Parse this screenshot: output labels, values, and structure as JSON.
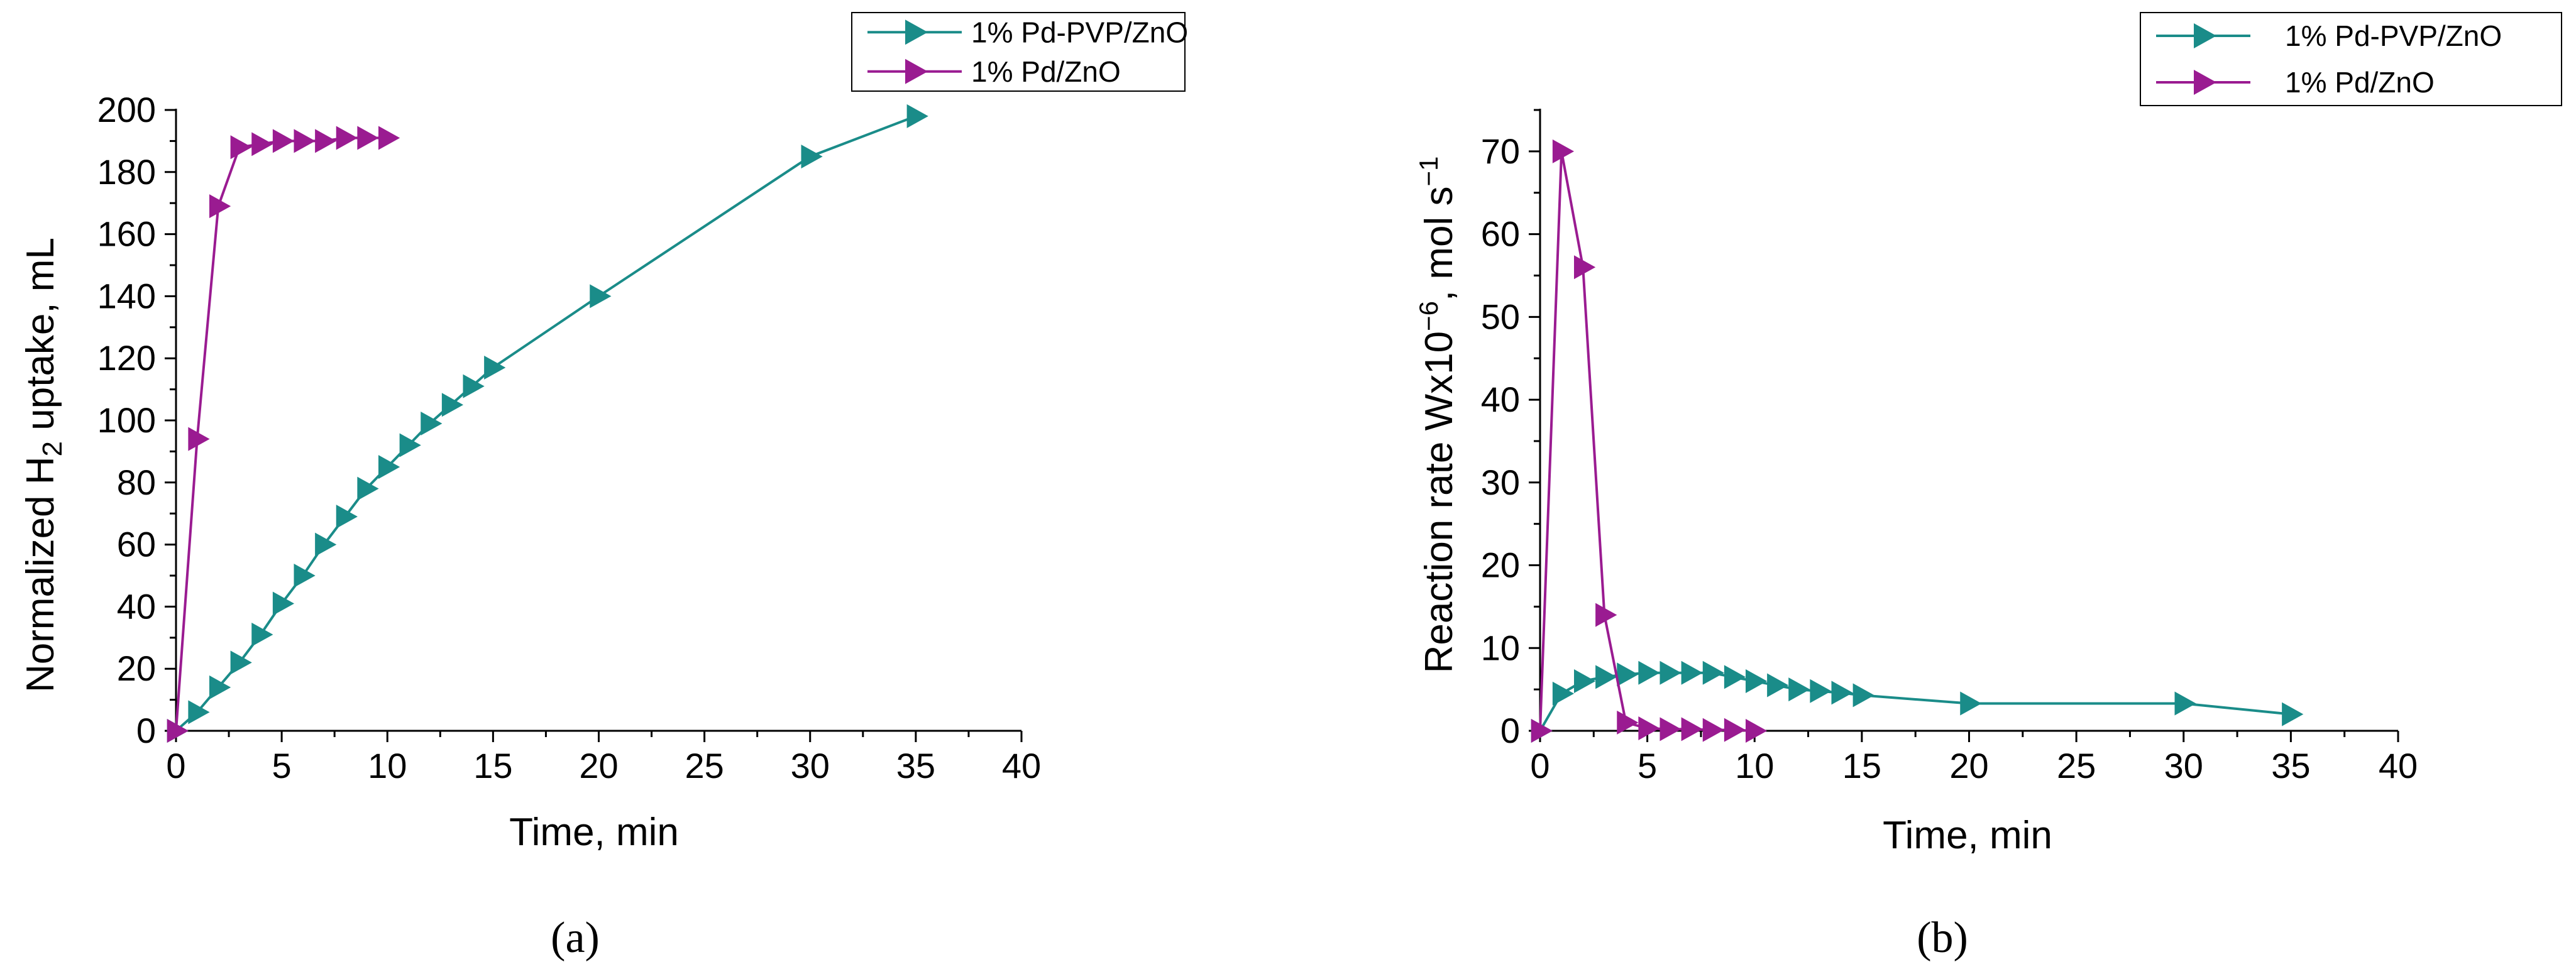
{
  "colors": {
    "teal": "#1A8C89",
    "purple": "#9A1B91",
    "axis": "#000000"
  },
  "chart_data": [
    {
      "panel": "a",
      "type": "line",
      "title": "",
      "xlabel": "Time, min",
      "ylabel": {
        "pre": "Normalized H",
        "sub": "2",
        "post": " uptake, mL"
      },
      "xlim": [
        0,
        40
      ],
      "ylim": [
        0,
        200
      ],
      "xticks": [
        0,
        5,
        10,
        15,
        20,
        25,
        30,
        35,
        40
      ],
      "yticks": [
        0,
        20,
        40,
        60,
        80,
        100,
        120,
        140,
        160,
        180,
        200
      ],
      "grid": false,
      "legend_position": "top-right",
      "series": [
        {
          "name": "1% Pd-PVP/ZnO",
          "color": "#1A8C89",
          "marker": "triangle-right",
          "x": [
            0,
            1,
            2,
            3,
            4,
            5,
            6,
            7,
            8,
            9,
            10,
            11,
            12,
            13,
            14,
            15,
            20,
            30,
            35
          ],
          "y": [
            0,
            6,
            14,
            22,
            31,
            41,
            50,
            60,
            69,
            78,
            85,
            92,
            99,
            105,
            111,
            117,
            140,
            185,
            198
          ]
        },
        {
          "name": "1% Pd/ZnO",
          "color": "#9A1B91",
          "marker": "triangle-right",
          "x": [
            0,
            1,
            2,
            3,
            4,
            5,
            6,
            7,
            8,
            9,
            10
          ],
          "y": [
            0,
            94,
            169,
            188,
            189,
            190,
            190,
            190,
            191,
            191,
            191
          ]
        }
      ]
    },
    {
      "panel": "b",
      "type": "line",
      "title": "",
      "xlabel": "Time, min",
      "ylabel": {
        "pre": "Reaction rate Wx10",
        "sup1": "−6",
        "mid": ", mol s",
        "sup2": "−1"
      },
      "xlim": [
        0,
        40
      ],
      "ylim": [
        0,
        75
      ],
      "xticks": [
        0,
        5,
        10,
        15,
        20,
        25,
        30,
        35,
        40
      ],
      "yticks": [
        0,
        10,
        20,
        30,
        40,
        50,
        60,
        70
      ],
      "grid": false,
      "legend_position": "top-right",
      "series": [
        {
          "name": "1% Pd-PVP/ZnO",
          "color": "#1A8C89",
          "marker": "triangle-right",
          "x": [
            0,
            1,
            2,
            3,
            4,
            5,
            6,
            7,
            8,
            9,
            10,
            11,
            12,
            13,
            14,
            15,
            20,
            30,
            35
          ],
          "y": [
            0,
            4.5,
            6,
            6.5,
            6.8,
            7,
            7,
            7,
            7,
            6.5,
            6,
            5.5,
            5,
            4.8,
            4.6,
            4.3,
            3.3,
            3.3,
            2
          ],
          "y_shown": [
            0,
            4.5,
            6,
            6.5,
            6.8,
            7,
            7,
            7,
            7,
            6.5,
            6,
            5.5,
            5,
            4.8,
            4.6,
            4.3,
            3.3,
            3.3,
            2
          ]
        },
        {
          "name": "1% Pd/ZnO",
          "color": "#9A1B91",
          "marker": "triangle-right",
          "x": [
            0,
            1,
            2,
            3,
            4,
            5,
            6,
            7,
            8,
            9,
            10
          ],
          "y": [
            0,
            70,
            56,
            14,
            1,
            0.3,
            0.2,
            0.2,
            0.1,
            0.1,
            0
          ]
        }
      ]
    }
  ],
  "panel_labels": {
    "a": "(a)",
    "b": "(b)"
  }
}
